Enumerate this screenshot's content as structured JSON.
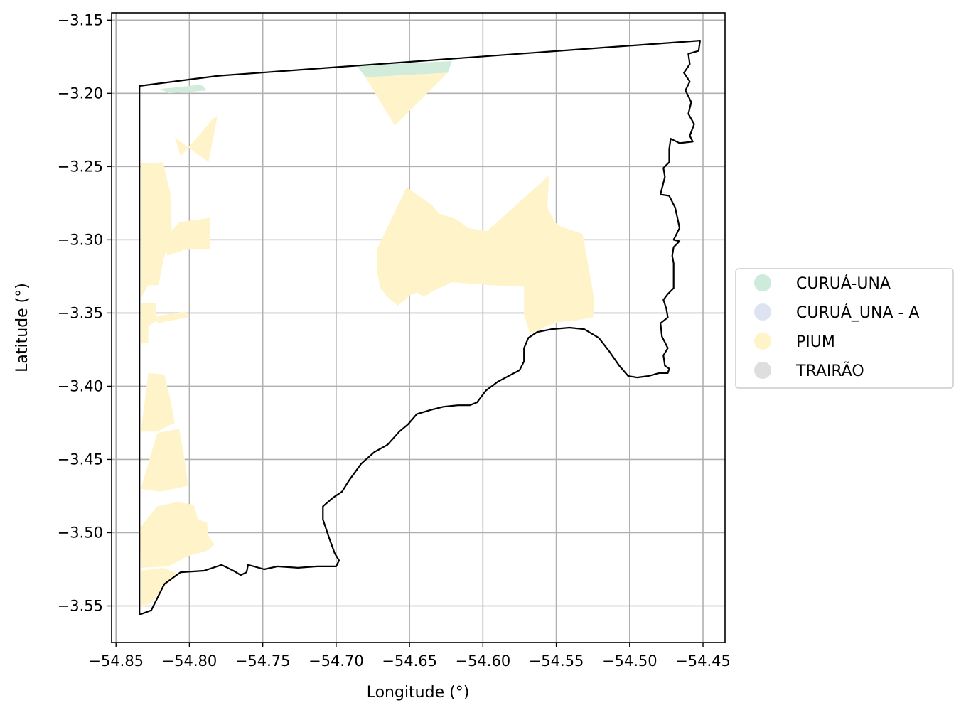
{
  "chart_data": {
    "type": "map",
    "xlabel": "Longitude (°)",
    "ylabel": "Latitude (°)",
    "xlim": [
      -54.853,
      -54.435
    ],
    "ylim": [
      -3.575,
      -3.145
    ],
    "x_ticks": [
      -54.85,
      -54.8,
      -54.75,
      -54.7,
      -54.65,
      -54.6,
      -54.55,
      -54.5,
      -54.45
    ],
    "x_tick_labels": [
      "−54.85",
      "−54.80",
      "−54.75",
      "−54.70",
      "−54.65",
      "−54.60",
      "−54.55",
      "−54.50",
      "−54.45"
    ],
    "y_ticks": [
      -3.15,
      -3.2,
      -3.25,
      -3.3,
      -3.35,
      -3.4,
      -3.45,
      -3.5,
      -3.55
    ],
    "y_tick_labels": [
      "−3.15",
      "−3.20",
      "−3.25",
      "−3.30",
      "−3.35",
      "−3.40",
      "−3.45",
      "−3.50",
      "−3.55"
    ],
    "grid": true,
    "legend_placement": "center-right outside",
    "legend": [
      {
        "label": "CURUÁ-UNA",
        "color": "#cdebdb"
      },
      {
        "label": "CURUÁ_UNA - A",
        "color": "#dde3f0"
      },
      {
        "label": "PIUM",
        "color": "#fff3c8"
      },
      {
        "label": "TRAIRÃO",
        "color": "#dedede"
      }
    ],
    "boundary": [
      [
        -54.834,
        -3.195
      ],
      [
        -54.78,
        -3.188
      ],
      [
        -54.452,
        -3.164
      ],
      [
        -54.453,
        -3.171
      ],
      [
        -54.46,
        -3.173
      ],
      [
        -54.459,
        -3.18
      ],
      [
        -54.463,
        -3.186
      ],
      [
        -54.459,
        -3.192
      ],
      [
        -54.462,
        -3.198
      ],
      [
        -54.458,
        -3.206
      ],
      [
        -54.46,
        -3.214
      ],
      [
        -54.456,
        -3.221
      ],
      [
        -54.459,
        -3.229
      ],
      [
        -54.457,
        -3.233
      ],
      [
        -54.466,
        -3.234
      ],
      [
        -54.472,
        -3.231
      ],
      [
        -54.473,
        -3.238
      ],
      [
        -54.473,
        -3.247
      ],
      [
        -54.477,
        -3.251
      ],
      [
        -54.476,
        -3.257
      ],
      [
        -54.478,
        -3.265
      ],
      [
        -54.479,
        -3.269
      ],
      [
        -54.473,
        -3.27
      ],
      [
        -54.469,
        -3.278
      ],
      [
        -54.467,
        -3.287
      ],
      [
        -54.466,
        -3.292
      ],
      [
        -54.47,
        -3.3
      ],
      [
        -54.466,
        -3.301
      ],
      [
        -54.47,
        -3.305
      ],
      [
        -54.471,
        -3.311
      ],
      [
        -54.47,
        -3.316
      ],
      [
        -54.47,
        -3.325
      ],
      [
        -54.47,
        -3.333
      ],
      [
        -54.474,
        -3.337
      ],
      [
        -54.477,
        -3.341
      ],
      [
        -54.475,
        -3.347
      ],
      [
        -54.474,
        -3.353
      ],
      [
        -54.479,
        -3.357
      ],
      [
        -54.478,
        -3.366
      ],
      [
        -54.474,
        -3.374
      ],
      [
        -54.477,
        -3.379
      ],
      [
        -54.476,
        -3.386
      ],
      [
        -54.473,
        -3.388
      ],
      [
        -54.474,
        -3.391
      ],
      [
        -54.48,
        -3.391
      ],
      [
        -54.487,
        -3.393
      ],
      [
        -54.495,
        -3.394
      ],
      [
        -54.501,
        -3.393
      ],
      [
        -54.507,
        -3.386
      ],
      [
        -54.514,
        -3.376
      ],
      [
        -54.521,
        -3.367
      ],
      [
        -54.531,
        -3.361
      ],
      [
        -54.541,
        -3.36
      ],
      [
        -54.553,
        -3.361
      ],
      [
        -54.563,
        -3.363
      ],
      [
        -54.569,
        -3.367
      ],
      [
        -54.572,
        -3.374
      ],
      [
        -54.572,
        -3.383
      ],
      [
        -54.575,
        -3.389
      ],
      [
        -54.59,
        -3.397
      ],
      [
        -54.598,
        -3.403
      ],
      [
        -54.604,
        -3.411
      ],
      [
        -54.609,
        -3.413
      ],
      [
        -54.617,
        -3.413
      ],
      [
        -54.627,
        -3.414
      ],
      [
        -54.635,
        -3.416
      ],
      [
        -54.645,
        -3.419
      ],
      [
        -54.651,
        -3.426
      ],
      [
        -54.657,
        -3.431
      ],
      [
        -54.665,
        -3.44
      ],
      [
        -54.674,
        -3.445
      ],
      [
        -54.683,
        -3.453
      ],
      [
        -54.691,
        -3.464
      ],
      [
        -54.696,
        -3.472
      ],
      [
        -54.702,
        -3.476
      ],
      [
        -54.709,
        -3.482
      ],
      [
        -54.709,
        -3.491
      ],
      [
        -54.705,
        -3.503
      ],
      [
        -54.701,
        -3.514
      ],
      [
        -54.698,
        -3.519
      ],
      [
        -54.7,
        -3.523
      ],
      [
        -54.713,
        -3.523
      ],
      [
        -54.726,
        -3.524
      ],
      [
        -54.74,
        -3.523
      ],
      [
        -54.749,
        -3.525
      ],
      [
        -54.756,
        -3.523
      ],
      [
        -54.76,
        -3.522
      ],
      [
        -54.761,
        -3.527
      ],
      [
        -54.765,
        -3.529
      ],
      [
        -54.77,
        -3.526
      ],
      [
        -54.778,
        -3.522
      ],
      [
        -54.79,
        -3.526
      ],
      [
        -54.806,
        -3.527
      ],
      [
        -54.817,
        -3.535
      ],
      [
        -54.826,
        -3.553
      ],
      [
        -54.834,
        -3.556
      ]
    ],
    "zones": [
      {
        "zone": "CURUÁ-UNA",
        "lonlat": [
          [
            -54.82,
            -3.197
          ],
          [
            -54.8,
            -3.195
          ],
          [
            -54.792,
            -3.194
          ],
          [
            -54.788,
            -3.198
          ],
          [
            -54.8,
            -3.199
          ],
          [
            -54.814,
            -3.2
          ]
        ]
      },
      {
        "zone": "CURUÁ-UNA",
        "lonlat": [
          [
            -54.686,
            -3.181
          ],
          [
            -54.621,
            -3.178
          ],
          [
            -54.624,
            -3.186
          ],
          [
            -54.68,
            -3.189
          ]
        ]
      },
      {
        "zone": "PIUM",
        "lonlat": [
          [
            -54.68,
            -3.189
          ],
          [
            -54.624,
            -3.186
          ],
          [
            -54.66,
            -3.222
          ]
        ]
      },
      {
        "zone": "PIUM",
        "lonlat": [
          [
            -54.652,
            -3.264
          ],
          [
            -54.635,
            -3.276
          ],
          [
            -54.63,
            -3.282
          ],
          [
            -54.618,
            -3.286
          ],
          [
            -54.61,
            -3.292
          ],
          [
            -54.597,
            -3.294
          ],
          [
            -54.555,
            -3.256
          ],
          [
            -54.556,
            -3.278
          ],
          [
            -54.551,
            -3.288
          ],
          [
            -54.547,
            -3.291
          ],
          [
            -54.532,
            -3.296
          ],
          [
            -54.524,
            -3.341
          ],
          [
            -54.525,
            -3.353
          ],
          [
            -54.536,
            -3.355
          ],
          [
            -54.547,
            -3.356
          ],
          [
            -54.557,
            -3.359
          ],
          [
            -54.562,
            -3.362
          ],
          [
            -54.568,
            -3.364
          ],
          [
            -54.572,
            -3.351
          ],
          [
            -54.572,
            -3.332
          ],
          [
            -54.595,
            -3.331
          ],
          [
            -54.621,
            -3.329
          ],
          [
            -54.634,
            -3.335
          ],
          [
            -54.64,
            -3.339
          ],
          [
            -54.645,
            -3.336
          ],
          [
            -54.65,
            -3.338
          ],
          [
            -54.653,
            -3.341
          ],
          [
            -54.658,
            -3.345
          ],
          [
            -54.665,
            -3.339
          ],
          [
            -54.67,
            -3.333
          ],
          [
            -54.672,
            -3.322
          ],
          [
            -54.672,
            -3.306
          ]
        ]
      },
      {
        "zone": "PIUM",
        "lonlat": [
          [
            -54.833,
            -3.248
          ],
          [
            -54.818,
            -3.247
          ],
          [
            -54.813,
            -3.268
          ],
          [
            -54.812,
            -3.294
          ],
          [
            -54.818,
            -3.315
          ],
          [
            -54.821,
            -3.331
          ],
          [
            -54.828,
            -3.331
          ],
          [
            -54.833,
            -3.34
          ]
        ]
      },
      {
        "zone": "PIUM",
        "lonlat": [
          [
            -54.807,
            -3.288
          ],
          [
            -54.786,
            -3.285
          ],
          [
            -54.786,
            -3.306
          ],
          [
            -54.804,
            -3.307
          ],
          [
            -54.815,
            -3.311
          ],
          [
            -54.817,
            -3.3
          ]
        ]
      },
      {
        "zone": "PIUM",
        "lonlat": [
          [
            -54.806,
            -3.243
          ],
          [
            -54.792,
            -3.227
          ],
          [
            -54.784,
            -3.217
          ],
          [
            -54.781,
            -3.216
          ],
          [
            -54.787,
            -3.247
          ],
          [
            -54.81,
            -3.23
          ]
        ]
      },
      {
        "zone": "PIUM",
        "lonlat": [
          [
            -54.833,
            -3.343
          ],
          [
            -54.823,
            -3.343
          ],
          [
            -54.822,
            -3.355
          ],
          [
            -54.828,
            -3.359
          ],
          [
            -54.828,
            -3.37
          ],
          [
            -54.833,
            -3.371
          ]
        ]
      },
      {
        "zone": "PIUM",
        "lonlat": [
          [
            -54.822,
            -3.352
          ],
          [
            -54.802,
            -3.349
          ],
          [
            -54.801,
            -3.353
          ],
          [
            -54.822,
            -3.357
          ]
        ]
      },
      {
        "zone": "PIUM",
        "lonlat": [
          [
            -54.828,
            -3.391
          ],
          [
            -54.817,
            -3.392
          ],
          [
            -54.813,
            -3.409
          ],
          [
            -54.81,
            -3.425
          ],
          [
            -54.822,
            -3.431
          ],
          [
            -54.833,
            -3.431
          ]
        ]
      },
      {
        "zone": "PIUM",
        "lonlat": [
          [
            -54.822,
            -3.432
          ],
          [
            -54.807,
            -3.429
          ],
          [
            -54.803,
            -3.451
          ],
          [
            -54.801,
            -3.468
          ],
          [
            -54.82,
            -3.472
          ],
          [
            -54.833,
            -3.47
          ]
        ]
      },
      {
        "zone": "PIUM",
        "lonlat": [
          [
            -54.822,
            -3.482
          ],
          [
            -54.808,
            -3.479
          ],
          [
            -54.797,
            -3.481
          ],
          [
            -54.794,
            -3.491
          ],
          [
            -54.788,
            -3.493
          ],
          [
            -54.787,
            -3.502
          ],
          [
            -54.783,
            -3.508
          ],
          [
            -54.787,
            -3.512
          ],
          [
            -54.801,
            -3.516
          ],
          [
            -54.814,
            -3.523
          ],
          [
            -54.833,
            -3.524
          ],
          [
            -54.834,
            -3.497
          ]
        ]
      },
      {
        "zone": "PIUM",
        "lonlat": [
          [
            -54.833,
            -3.526
          ],
          [
            -54.818,
            -3.524
          ],
          [
            -54.808,
            -3.528
          ],
          [
            -54.817,
            -3.537
          ],
          [
            -54.826,
            -3.548
          ],
          [
            -54.833,
            -3.551
          ]
        ]
      }
    ]
  }
}
